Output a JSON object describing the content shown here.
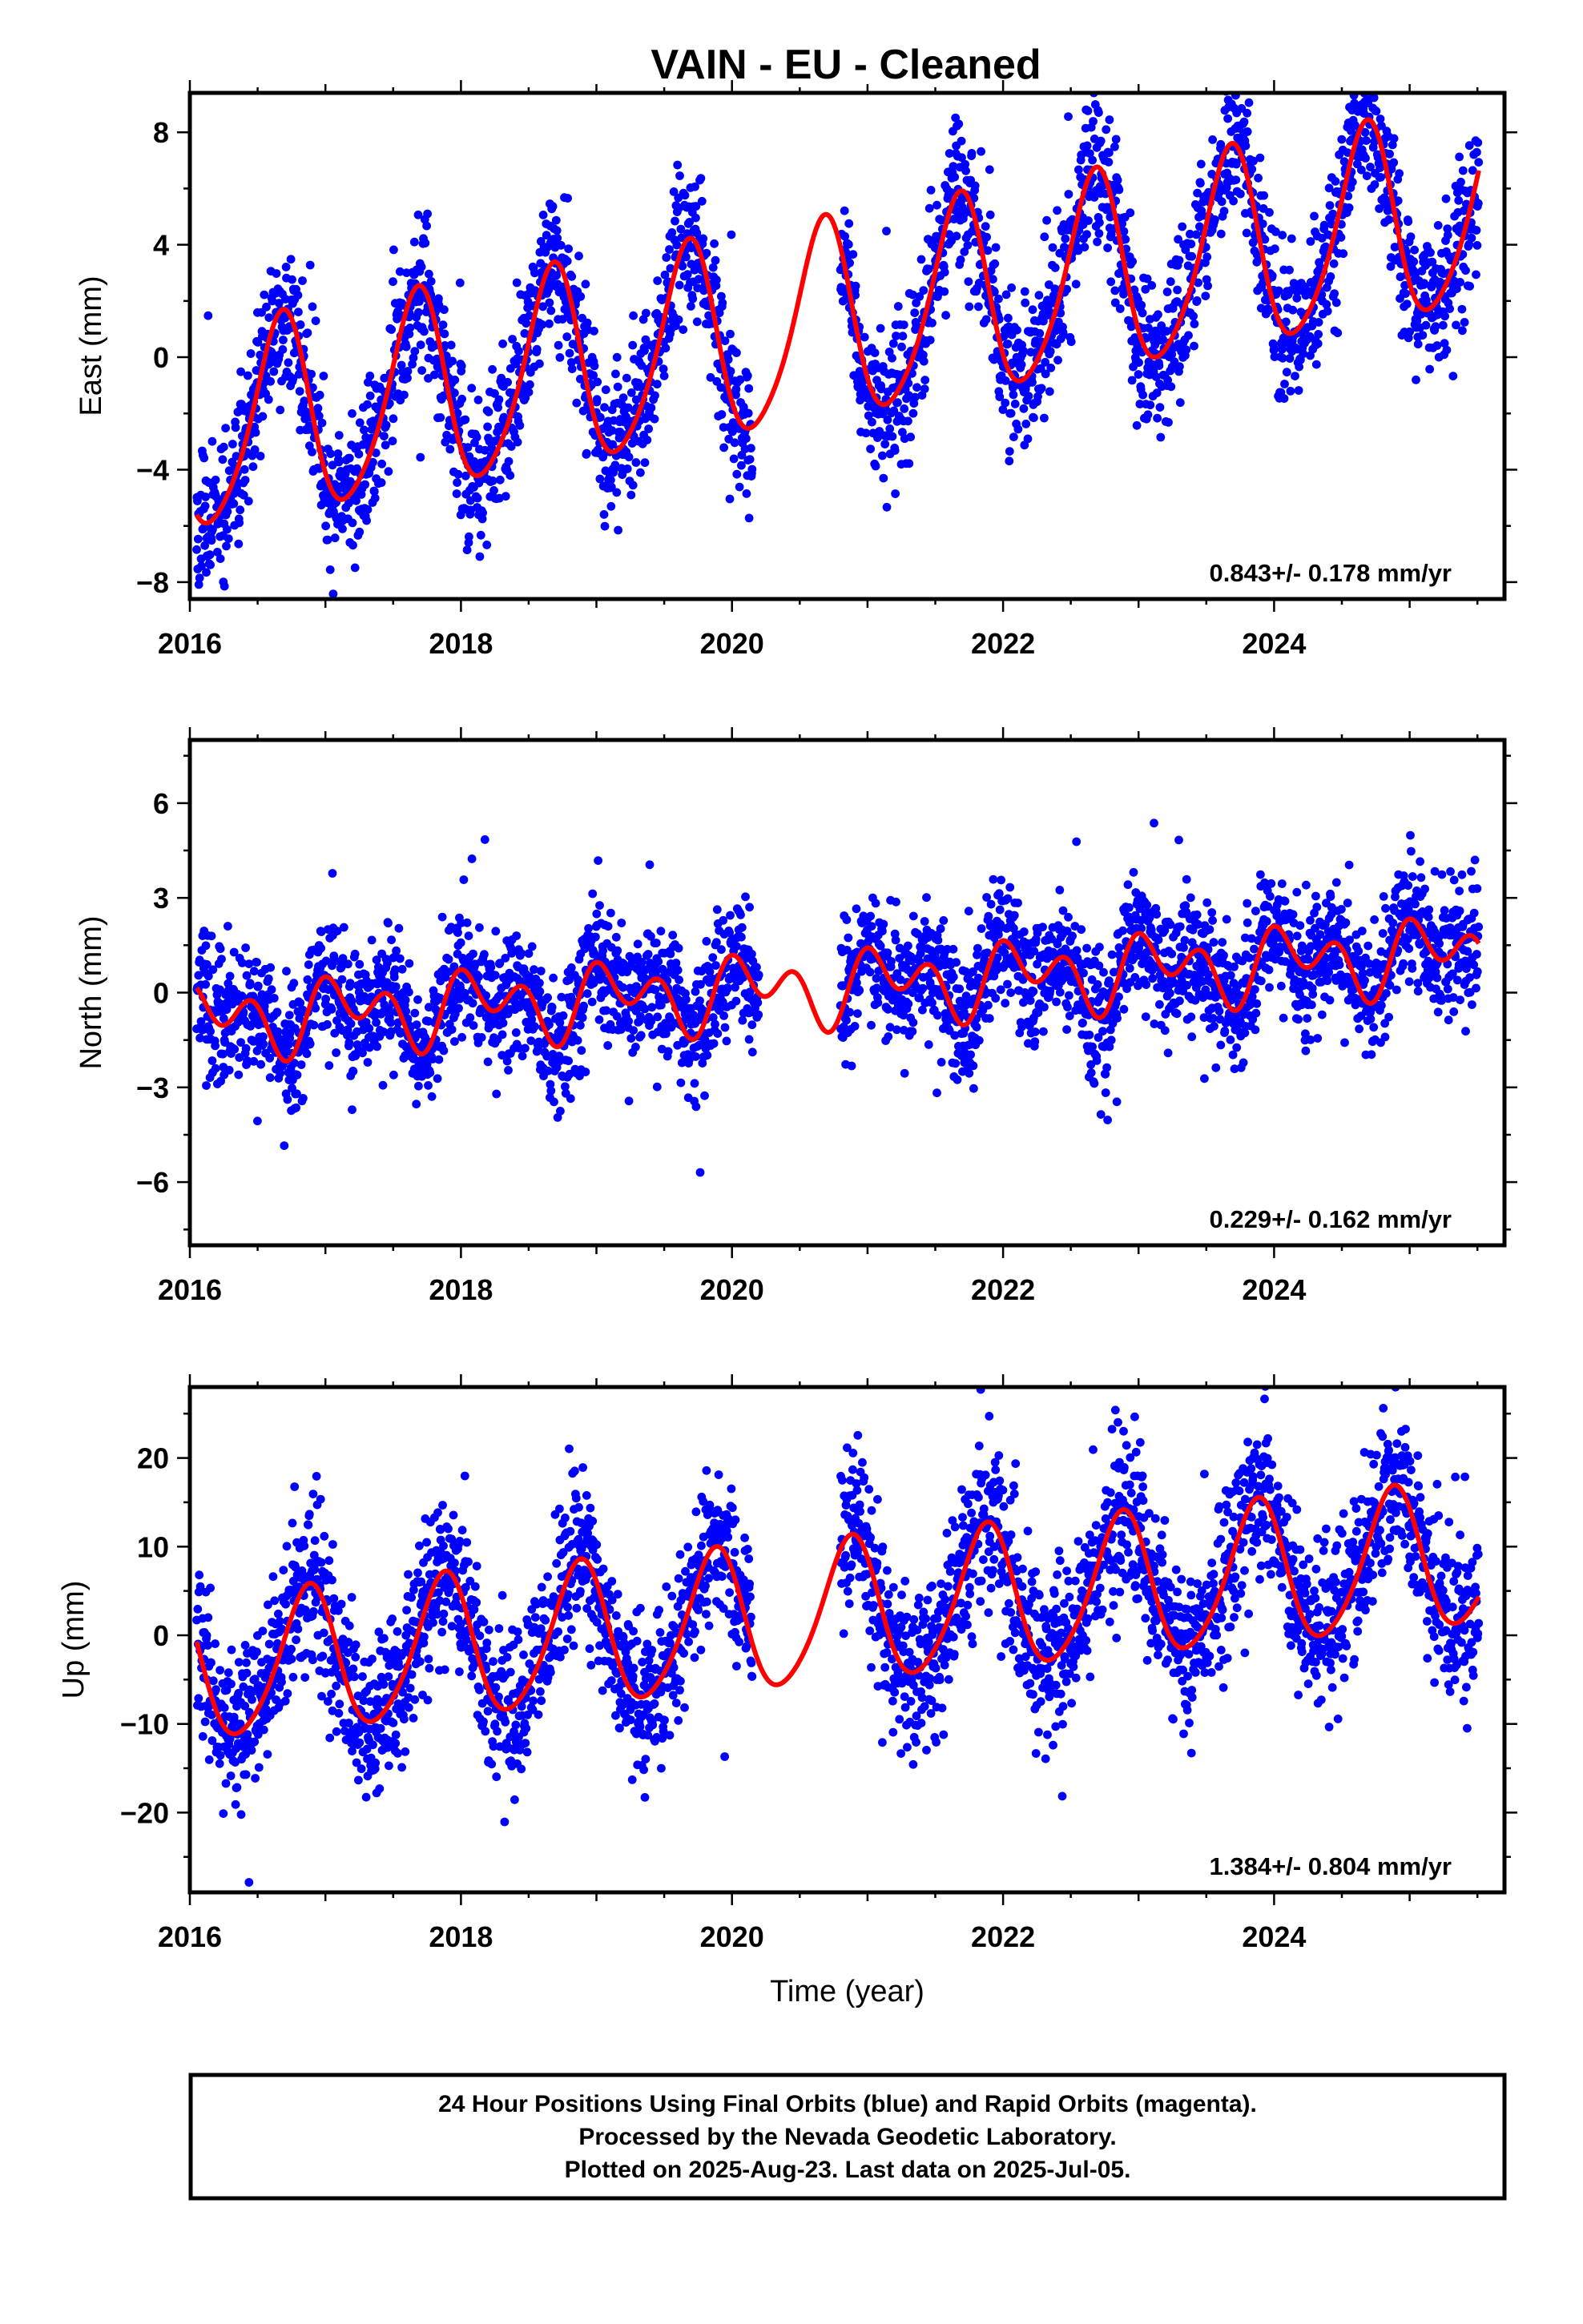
{
  "chart_data": [
    {
      "type": "scatter",
      "title": "VAIN  - EU - Cleaned",
      "ylabel": "East (mm)",
      "xlabel": "",
      "xlim": [
        2016.0,
        2025.7
      ],
      "ylim": [
        -8.6,
        9.4
      ],
      "xticks": [
        2016,
        2018,
        2020,
        2022,
        2024
      ],
      "yticks": [
        -8,
        -4,
        0,
        4,
        8
      ],
      "ytick_labels": [
        "−8",
        "−4",
        "0",
        "4",
        "8"
      ],
      "rate_label": "0.843+/- 0.178 mm/yr",
      "model": {
        "offset": -2.8,
        "rate": 0.843,
        "amp_annual": 3.5,
        "phase_annual": 0.42,
        "amp_semi": 0.5,
        "phase_semi": 0.1,
        "t0": 2016.0
      },
      "scatter": {
        "start": 2016.05,
        "end": 2025.51,
        "gaps": [
          [
            2020.15,
            2020.8
          ]
        ],
        "noise": 1.3,
        "seed": 11
      },
      "series": [
        {
          "name": "Final Orbits",
          "role": "positions",
          "color": "#0000ff"
        },
        {
          "name": "",
          "role": "model fit",
          "color": "#ff0000"
        }
      ]
    },
    {
      "type": "scatter",
      "title": "",
      "ylabel": "North (mm)",
      "xlabel": "",
      "xlim": [
        2016.0,
        2025.7
      ],
      "ylim": [
        -8.0,
        8.0
      ],
      "xticks": [
        2016,
        2018,
        2020,
        2022,
        2024
      ],
      "yticks": [
        -6,
        -3,
        0,
        3,
        6
      ],
      "ytick_labels": [
        "−6",
        "−3",
        "0",
        "3",
        "6"
      ],
      "rate_label": "0.229+/- 0.162 mm/yr",
      "model": {
        "offset": -0.9,
        "rate": 0.229,
        "amp_annual": 0.7,
        "phase_annual": 0.9,
        "amp_semi": 0.8,
        "phase_semi": 0.35,
        "t0": 2016.0
      },
      "scatter": {
        "start": 2016.05,
        "end": 2025.51,
        "gaps": [
          [
            2020.2,
            2020.8
          ]
        ],
        "noise": 1.0,
        "seed": 23
      },
      "series": [
        {
          "name": "Final Orbits",
          "role": "positions",
          "color": "#0000ff"
        },
        {
          "name": "",
          "role": "model fit",
          "color": "#ff0000"
        }
      ]
    },
    {
      "type": "scatter",
      "title": "",
      "ylabel": "Up (mm)",
      "xlabel": "Time (year)",
      "xlim": [
        2016.0,
        2025.7
      ],
      "ylim": [
        -29,
        28
      ],
      "xticks": [
        2016,
        2018,
        2020,
        2022,
        2024
      ],
      "yticks": [
        -20,
        -10,
        0,
        10,
        20
      ],
      "ytick_labels": [
        "−20",
        "−10",
        "0",
        "10",
        "20"
      ],
      "rate_label": "1.384+/- 0.804 mm/yr",
      "model": {
        "offset": -4.2,
        "rate": 1.384,
        "amp_annual": 8.0,
        "phase_annual": 0.62,
        "amp_semi": 1.0,
        "phase_semi": 0.3,
        "t0": 2016.0
      },
      "scatter": {
        "start": 2016.05,
        "end": 2025.51,
        "gaps": [
          [
            2020.15,
            2020.8
          ]
        ],
        "noise": 4.5,
        "seed": 37
      },
      "series": [
        {
          "name": "Final Orbits",
          "role": "positions",
          "color": "#0000ff"
        },
        {
          "name": "",
          "role": "model fit",
          "color": "#ff0000"
        }
      ]
    }
  ],
  "footer": {
    "line1": "24 Hour Positions Using Final Orbits (blue) and Rapid Orbits (magenta).",
    "line2": "Processed by the Nevada Geodetic Laboratory.",
    "line3": "Plotted on 2025-Aug-23. Last data on 2025-Jul-05."
  },
  "colors": {
    "points": "#0000ff",
    "fit": "#ff0000",
    "frame": "#000000"
  }
}
